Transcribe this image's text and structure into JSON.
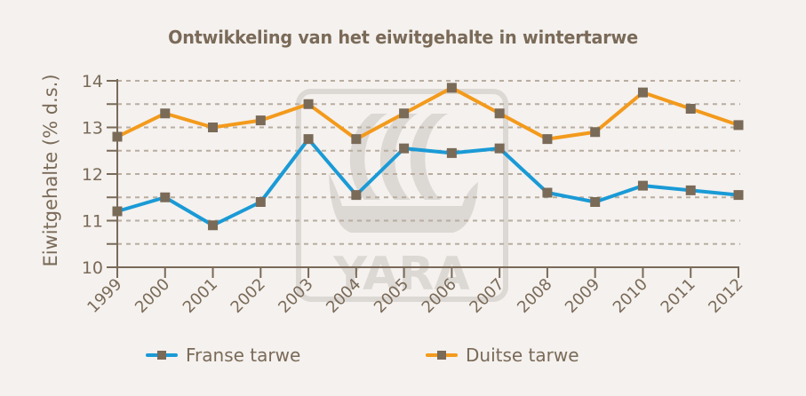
{
  "chart_data": {
    "type": "line",
    "title": "Ontwikkeling van het eiwitgehalte in wintertarwe",
    "xlabel": "",
    "ylabel": "Eiwitgehalte (% d.s.)",
    "ylim": [
      10,
      14
    ],
    "yticks": [
      10,
      11,
      12,
      13,
      14
    ],
    "minor_gridlines": [
      10.5,
      11.5,
      12.5,
      13.5
    ],
    "grid": true,
    "grid_style": "dashed horizontal",
    "legend_position": "bottom",
    "categories": [
      "1999",
      "2000",
      "2001",
      "2002",
      "2003",
      "2004",
      "2005",
      "2006",
      "2007",
      "2008",
      "2009",
      "2010",
      "2011",
      "2012"
    ],
    "series": [
      {
        "name": "Franse tarwe",
        "color": "#1a9ad6",
        "values": [
          11.2,
          11.5,
          10.9,
          11.4,
          12.75,
          11.55,
          12.55,
          12.45,
          12.55,
          11.6,
          11.4,
          11.75,
          11.65,
          11.55
        ]
      },
      {
        "name": "Duitse tarwe",
        "color": "#f39a1c",
        "values": [
          12.8,
          13.3,
          13.0,
          13.15,
          13.5,
          12.75,
          13.3,
          13.85,
          13.3,
          12.75,
          12.9,
          13.75,
          13.4,
          13.05
        ]
      }
    ],
    "marker_color": "#7a6a58",
    "watermark": "YARA"
  },
  "legend": {
    "items": [
      {
        "label": "Franse tarwe",
        "color": "#1a9ad6"
      },
      {
        "label": "Duitse tarwe",
        "color": "#f39a1c"
      }
    ]
  },
  "colors": {
    "background": "#f4f1ee",
    "text": "#7a6a58",
    "axis": "#7a6a58",
    "grid": "#b9ada0",
    "watermark": "#dcd8d4"
  }
}
